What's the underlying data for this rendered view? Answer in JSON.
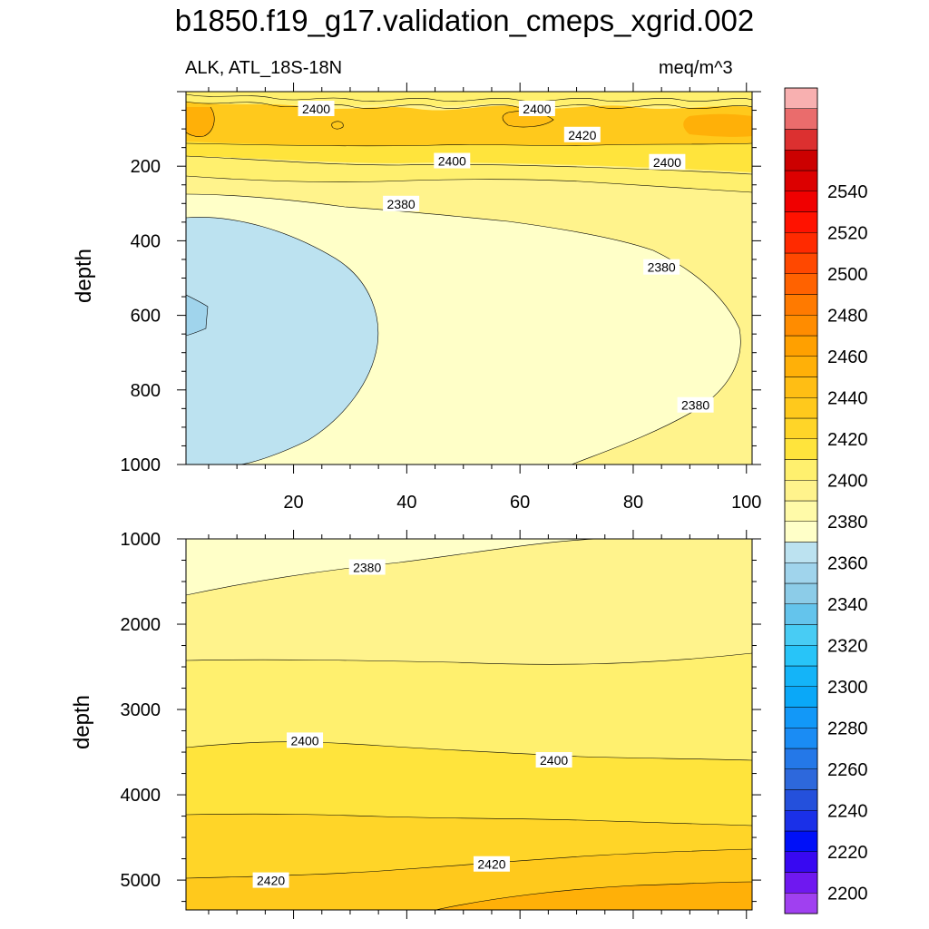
{
  "chart_data": {
    "type": "contour",
    "title": "b1850.f19_g17.validation_cmeps_xgrid.002",
    "variable_label": "ALK, ATL_18S-18N",
    "units_label": "meq/m^3",
    "xlabel": "",
    "ylabel": "depth",
    "xlim": [
      1,
      101
    ],
    "x_ticks": [
      20,
      40,
      60,
      80,
      100
    ],
    "panels": [
      {
        "name": "upper",
        "ylim": [
          0,
          1000
        ],
        "y_ticks": [
          200,
          400,
          600,
          800,
          1000
        ],
        "contour_labels": [
          {
            "text": "2400",
            "x": 24,
            "depth": 45
          },
          {
            "text": "2400",
            "x": 63,
            "depth": 45
          },
          {
            "text": "2420",
            "x": 71,
            "depth": 115
          },
          {
            "text": "2400",
            "x": 48,
            "depth": 185
          },
          {
            "text": "2400",
            "x": 86,
            "depth": 188
          },
          {
            "text": "2380",
            "x": 39,
            "depth": 300
          },
          {
            "text": "2380",
            "x": 85,
            "depth": 470
          },
          {
            "text": "2380",
            "x": 91,
            "depth": 840
          }
        ]
      },
      {
        "name": "lower",
        "ylim": [
          1000,
          5350
        ],
        "y_ticks": [
          1000,
          2000,
          3000,
          4000,
          5000
        ],
        "contour_labels": [
          {
            "text": "2380",
            "x": 33,
            "depth": 1330
          },
          {
            "text": "2400",
            "x": 22,
            "depth": 3360
          },
          {
            "text": "2400",
            "x": 66,
            "depth": 3590
          },
          {
            "text": "2420",
            "x": 55,
            "depth": 4810
          },
          {
            "text": "2420",
            "x": 16,
            "depth": 5000
          }
        ]
      }
    ],
    "colorbar": {
      "label_values": [
        2200,
        2220,
        2240,
        2260,
        2280,
        2300,
        2320,
        2340,
        2360,
        2380,
        2400,
        2420,
        2440,
        2460,
        2480,
        2500,
        2520,
        2540
      ],
      "level_step": 10,
      "colors": [
        "#a040f0",
        "#6f18f0",
        "#3808f2",
        "#0010f8",
        "#1a30e8",
        "#2450dc",
        "#2d68dc",
        "#2478e8",
        "#1a8cf4",
        "#1298f8",
        "#0aa8f8",
        "#14b4f8",
        "#28c4f8",
        "#48ccf4",
        "#64c4ec",
        "#8ccce8",
        "#a0d4ec",
        "#bce2f0",
        "#ffffc8",
        "#fffaa8",
        "#fff38c",
        "#fff06e",
        "#ffe43c",
        "#ffd528",
        "#ffc91c",
        "#ffbe14",
        "#ffb008",
        "#ffa000",
        "#ff8c00",
        "#ff7a00",
        "#ff6200",
        "#ff4800",
        "#ff2a00",
        "#ff1200",
        "#f00000",
        "#dc0000",
        "#cc0000",
        "#dc3030",
        "#ea6c6c",
        "#f8b0b0"
      ]
    }
  }
}
